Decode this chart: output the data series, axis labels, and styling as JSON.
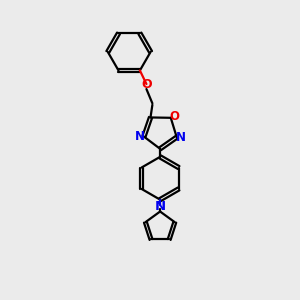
{
  "background_color": "#ebebeb",
  "bond_color": "#000000",
  "N_color": "#0000ee",
  "O_color": "#ee0000",
  "figsize": [
    3.0,
    3.0
  ],
  "dpi": 100,
  "xlim": [
    0,
    10
  ],
  "ylim": [
    0,
    10
  ]
}
